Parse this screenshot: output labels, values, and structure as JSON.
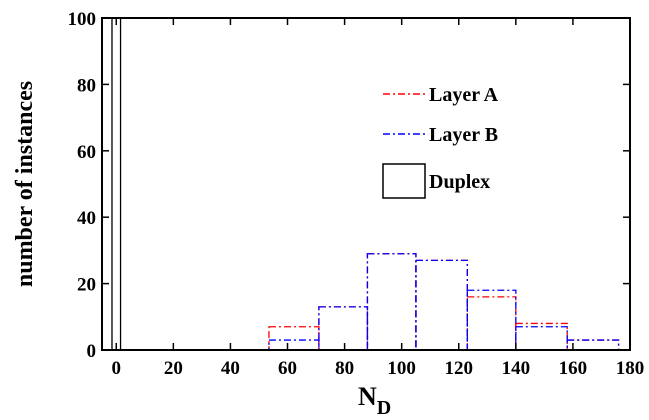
{
  "chart_data": {
    "type": "bar",
    "title": "",
    "xlabel": "N",
    "xlabel_subscript": "D",
    "ylabel": "number of instances",
    "xlim": [
      -5,
      180
    ],
    "ylim": [
      0,
      100
    ],
    "xticks": [
      0,
      20,
      40,
      60,
      80,
      100,
      120,
      140,
      160,
      180
    ],
    "yticks": [
      0,
      20,
      40,
      60,
      80,
      100
    ],
    "legend": "top-right",
    "grid": false,
    "series": [
      {
        "name": "Layer A",
        "color": "#ff0000",
        "style": "dash-dot",
        "bins": [
          {
            "x0": 53.5,
            "x1": 71,
            "y": 7
          },
          {
            "x0": 71,
            "x1": 88,
            "y": 13
          },
          {
            "x0": 88,
            "x1": 105,
            "y": 29
          },
          {
            "x0": 105,
            "x1": 123,
            "y": 27
          },
          {
            "x0": 123,
            "x1": 140,
            "y": 16
          },
          {
            "x0": 140,
            "x1": 158,
            "y": 8
          },
          {
            "x0": 158,
            "x1": 176,
            "y": 3
          }
        ]
      },
      {
        "name": "Layer B",
        "color": "#0000ff",
        "style": "dash-dot",
        "bins": [
          {
            "x0": 53.5,
            "x1": 71,
            "y": 3
          },
          {
            "x0": 71,
            "x1": 88,
            "y": 13
          },
          {
            "x0": 88,
            "x1": 105,
            "y": 29
          },
          {
            "x0": 105,
            "x1": 123,
            "y": 27
          },
          {
            "x0": 123,
            "x1": 140,
            "y": 18
          },
          {
            "x0": 140,
            "x1": 158,
            "y": 7
          },
          {
            "x0": 158,
            "x1": 176,
            "y": 3
          }
        ]
      },
      {
        "name": "Duplex",
        "color": "#000000",
        "style": "solid",
        "bins": [
          {
            "x0": -1.5,
            "x1": 1.5,
            "y": 100
          }
        ]
      }
    ]
  }
}
